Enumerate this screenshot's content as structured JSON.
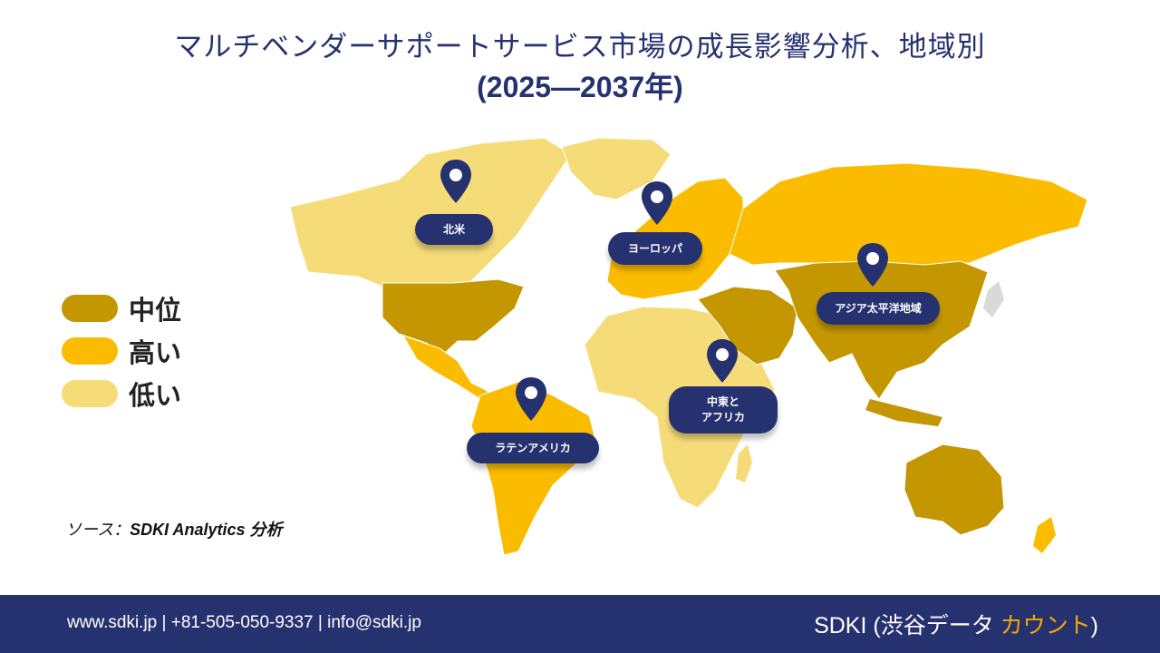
{
  "title": {
    "line1": "マルチベンダーサポートサービス市場の成長影響分析、地域別",
    "line2": "(2025—2037年)"
  },
  "legend": [
    {
      "label": "中位",
      "color": "#c49600"
    },
    {
      "label": "高い",
      "color": "#fbbc00"
    },
    {
      "label": "低い",
      "color": "#f6dc78"
    }
  ],
  "regions": {
    "north_america": {
      "label": "北米",
      "level": "低い"
    },
    "europe": {
      "label": "ヨーロッパ",
      "level": "高い"
    },
    "asia_pacific": {
      "label": "アジア太平洋地域",
      "level": "中位"
    },
    "latin_america": {
      "label": "ラテンアメリカ",
      "level": "高い"
    },
    "middle_east_africa": {
      "label_line1": "中東と",
      "label_line2": "アフリカ",
      "level": "低い"
    }
  },
  "source": {
    "prefix": "ソース：",
    "text": "SDKI Analytics 分析"
  },
  "footer": {
    "contact": "www.sdki.jp  |  +81-505-050-9337  |  info@sdki.jp",
    "brand_main": "SDKI (渋谷データ ",
    "brand_accent": "カウント",
    "brand_close": ")"
  },
  "colors": {
    "navy": "#263270",
    "mid": "#c49600",
    "high": "#fbbc00",
    "low": "#f6dc78"
  }
}
